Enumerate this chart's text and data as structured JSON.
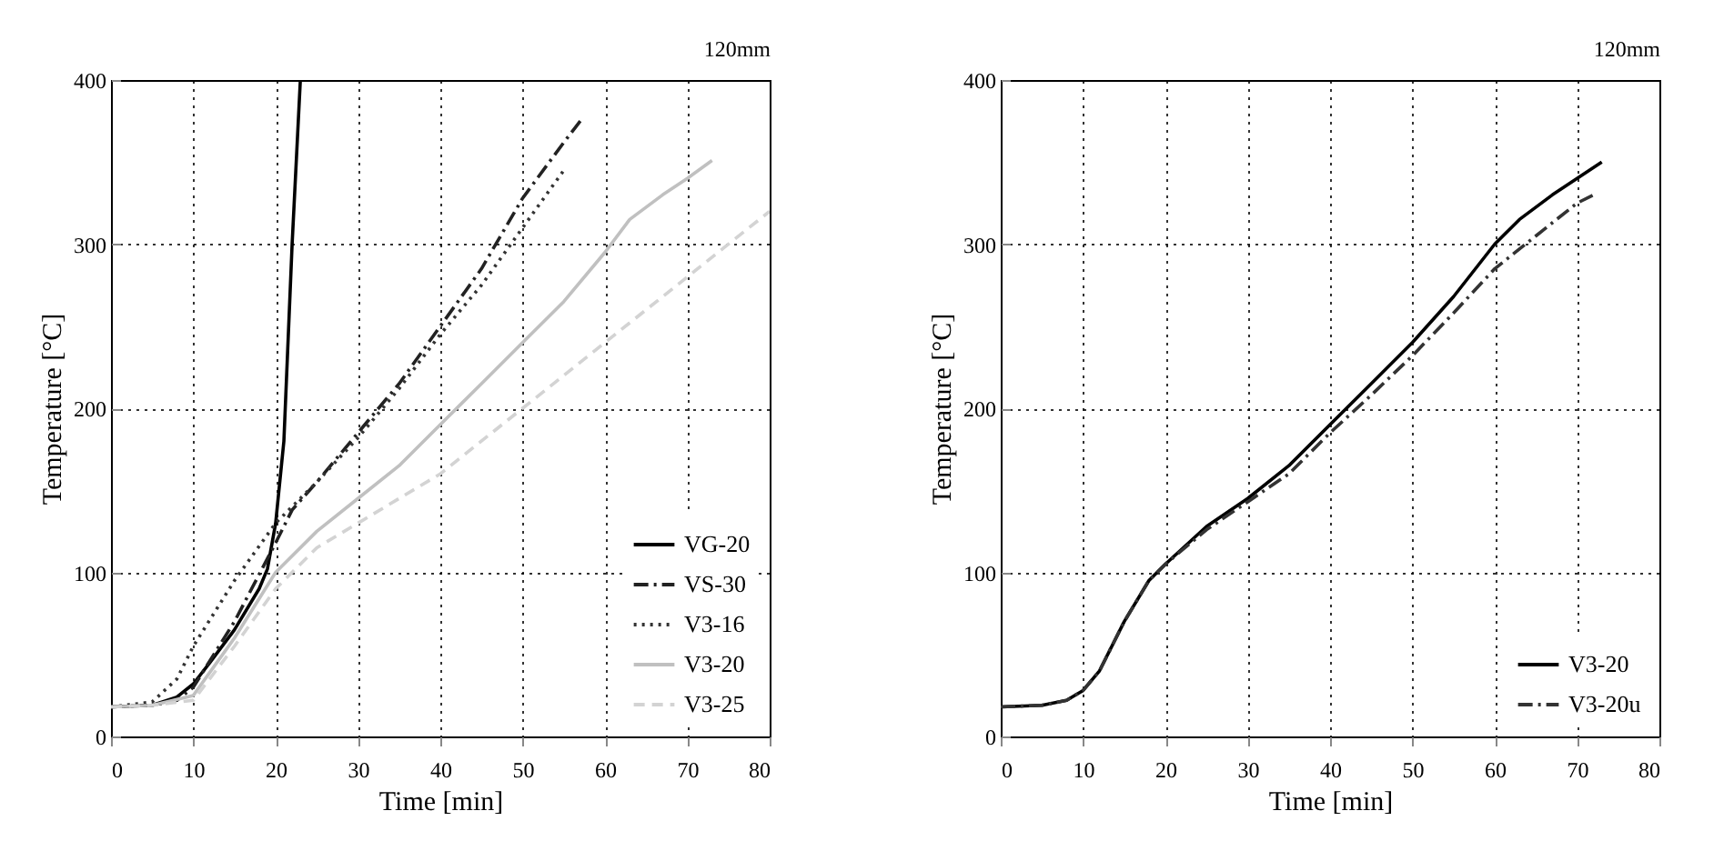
{
  "chart_data": [
    {
      "type": "line",
      "annotations": [
        "120mm"
      ],
      "xlabel": "Time [min]",
      "ylabel": "Temperature [°C]",
      "xlim": [
        0,
        80
      ],
      "ylim": [
        0,
        400
      ],
      "xticks": [
        0,
        10,
        20,
        30,
        40,
        50,
        60,
        70,
        80
      ],
      "yticks": [
        0,
        100,
        200,
        300,
        400
      ],
      "grid": true,
      "legend": "bottom right",
      "series": [
        {
          "name": "VG-20",
          "color": "#000000",
          "line_style": "solid",
          "x": [
            0,
            5,
            8,
            10,
            12,
            15,
            18,
            19,
            20,
            21,
            22,
            23
          ],
          "values": [
            18,
            19,
            24,
            32,
            45,
            65,
            90,
            102,
            130,
            180,
            300,
            400
          ]
        },
        {
          "name": "VS-30",
          "color": "#222222",
          "line_style": "dashdot",
          "x": [
            0,
            5,
            8,
            10,
            15,
            20,
            22,
            25,
            30,
            35,
            40,
            45,
            50,
            55,
            57
          ],
          "values": [
            18,
            19,
            22,
            30,
            70,
            118,
            138,
            155,
            185,
            215,
            250,
            285,
            328,
            362,
            375
          ]
        },
        {
          "name": "V3-16",
          "color": "#333333",
          "line_style": "dotted",
          "x": [
            0,
            5,
            8,
            10,
            15,
            20,
            25,
            30,
            35,
            40,
            45,
            50,
            55
          ],
          "values": [
            18,
            21,
            35,
            55,
            95,
            130,
            155,
            182,
            212,
            245,
            275,
            310,
            345
          ]
        },
        {
          "name": "V3-20",
          "color": "#c0c0c0",
          "line_style": "solid",
          "x": [
            0,
            5,
            10,
            15,
            20,
            25,
            30,
            35,
            40,
            45,
            50,
            55,
            60,
            63,
            67,
            70,
            73
          ],
          "values": [
            18,
            19,
            25,
            60,
            100,
            125,
            145,
            165,
            190,
            215,
            240,
            265,
            295,
            315,
            330,
            340,
            351
          ]
        },
        {
          "name": "V3-25",
          "color": "#d3d3d3",
          "line_style": "dashed",
          "x": [
            0,
            5,
            10,
            15,
            20,
            25,
            30,
            40,
            50,
            60,
            70,
            80
          ],
          "values": [
            18,
            19,
            22,
            55,
            90,
            115,
            130,
            160,
            200,
            240,
            280,
            320
          ]
        }
      ]
    },
    {
      "type": "line",
      "annotations": [
        "120mm"
      ],
      "xlabel": "Time [min]",
      "ylabel": "Temperature [°C]",
      "xlim": [
        0,
        80
      ],
      "ylim": [
        0,
        400
      ],
      "xticks": [
        0,
        10,
        20,
        30,
        40,
        50,
        60,
        70,
        80
      ],
      "yticks": [
        0,
        100,
        200,
        300,
        400
      ],
      "grid": true,
      "legend": "bottom right",
      "series": [
        {
          "name": "V3-20",
          "color": "#000000",
          "line_style": "solid",
          "x": [
            0,
            5,
            8,
            10,
            12,
            15,
            18,
            20,
            25,
            30,
            35,
            40,
            45,
            50,
            55,
            60,
            63,
            67,
            70,
            73
          ],
          "values": [
            18,
            19,
            22,
            28,
            40,
            70,
            95,
            105,
            128,
            145,
            165,
            190,
            215,
            240,
            268,
            300,
            315,
            330,
            340,
            350
          ]
        },
        {
          "name": "V3-20u",
          "color": "#333333",
          "line_style": "dashdot",
          "x": [
            0,
            5,
            8,
            10,
            12,
            15,
            18,
            20,
            25,
            30,
            35,
            40,
            45,
            50,
            55,
            60,
            65,
            70,
            72
          ],
          "values": [
            18,
            19,
            22,
            28,
            40,
            70,
            95,
            105,
            126,
            143,
            160,
            185,
            208,
            232,
            258,
            285,
            305,
            325,
            330
          ]
        }
      ]
    }
  ]
}
